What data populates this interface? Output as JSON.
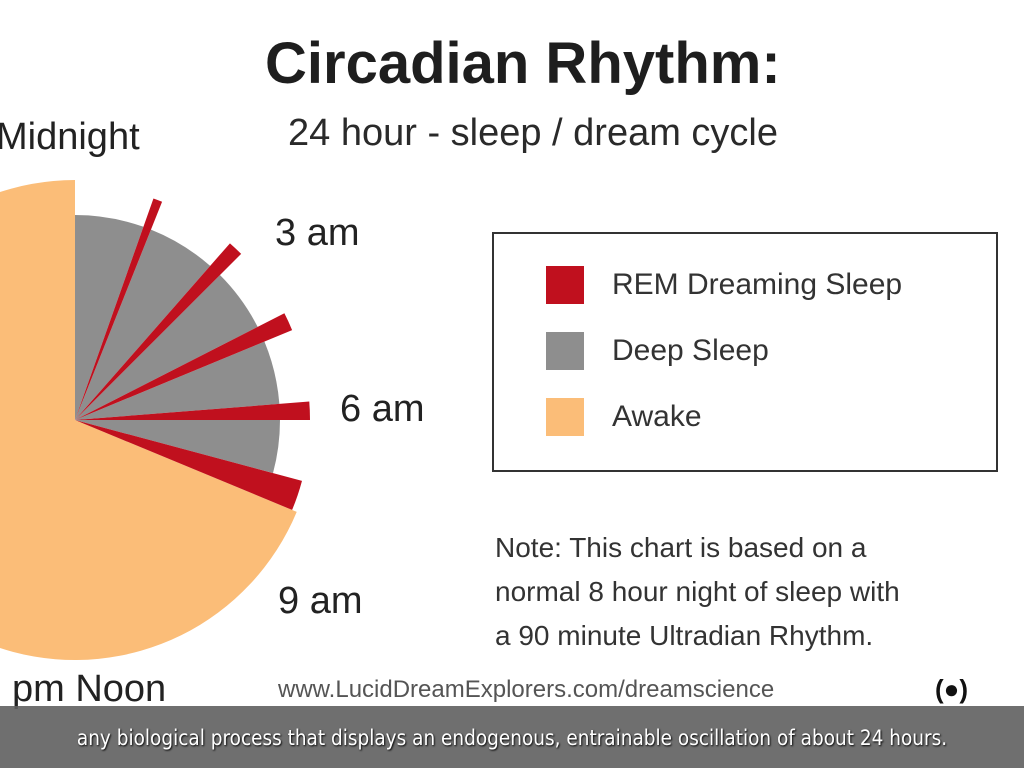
{
  "chart_data": {
    "type": "pie",
    "title": "Circadian Rhythm:",
    "subtitle": "24 hour - sleep / dream cycle",
    "clock_labels": [
      "Midnight",
      "3 am",
      "6 am",
      "9 am",
      "pm Noon"
    ],
    "segments": [
      {
        "series": "Deep Sleep",
        "start_hour": 0,
        "end_hour": 1.3
      },
      {
        "series": "REM Dreaming Sleep",
        "start_hour": 1.3,
        "end_hour": 1.45
      },
      {
        "series": "Deep Sleep",
        "start_hour": 1.45,
        "end_hour": 2.75
      },
      {
        "series": "REM Dreaming Sleep",
        "start_hour": 2.75,
        "end_hour": 3.0
      },
      {
        "series": "Deep Sleep",
        "start_hour": 3.0,
        "end_hour": 4.2
      },
      {
        "series": "REM Dreaming Sleep",
        "start_hour": 4.2,
        "end_hour": 4.5
      },
      {
        "series": "Deep Sleep",
        "start_hour": 4.5,
        "end_hour": 5.7
      },
      {
        "series": "REM Dreaming Sleep",
        "start_hour": 5.7,
        "end_hour": 6.0
      },
      {
        "series": "Deep Sleep",
        "start_hour": 6.0,
        "end_hour": 7.0
      },
      {
        "series": "REM Dreaming Sleep",
        "start_hour": 7.0,
        "end_hour": 7.5
      },
      {
        "series": "Awake",
        "start_hour": 7.5,
        "end_hour": 24
      }
    ],
    "legend": [
      {
        "name": "REM Dreaming Sleep",
        "color": "#c0101e"
      },
      {
        "name": "Deep Sleep",
        "color": "#8e8e8e"
      },
      {
        "name": "Awake",
        "color": "#fbbd78"
      }
    ],
    "legend_placement": "right",
    "note": [
      "Note: This chart is based on a",
      "normal 8 hour night of sleep with",
      "a 90 minute Ultradian Rhythm."
    ],
    "source": "www.LucidDreamExplorers.com/dreamscience"
  },
  "caption": "any biological process that displays an endogenous, entrainable oscillation of about 24 hours."
}
